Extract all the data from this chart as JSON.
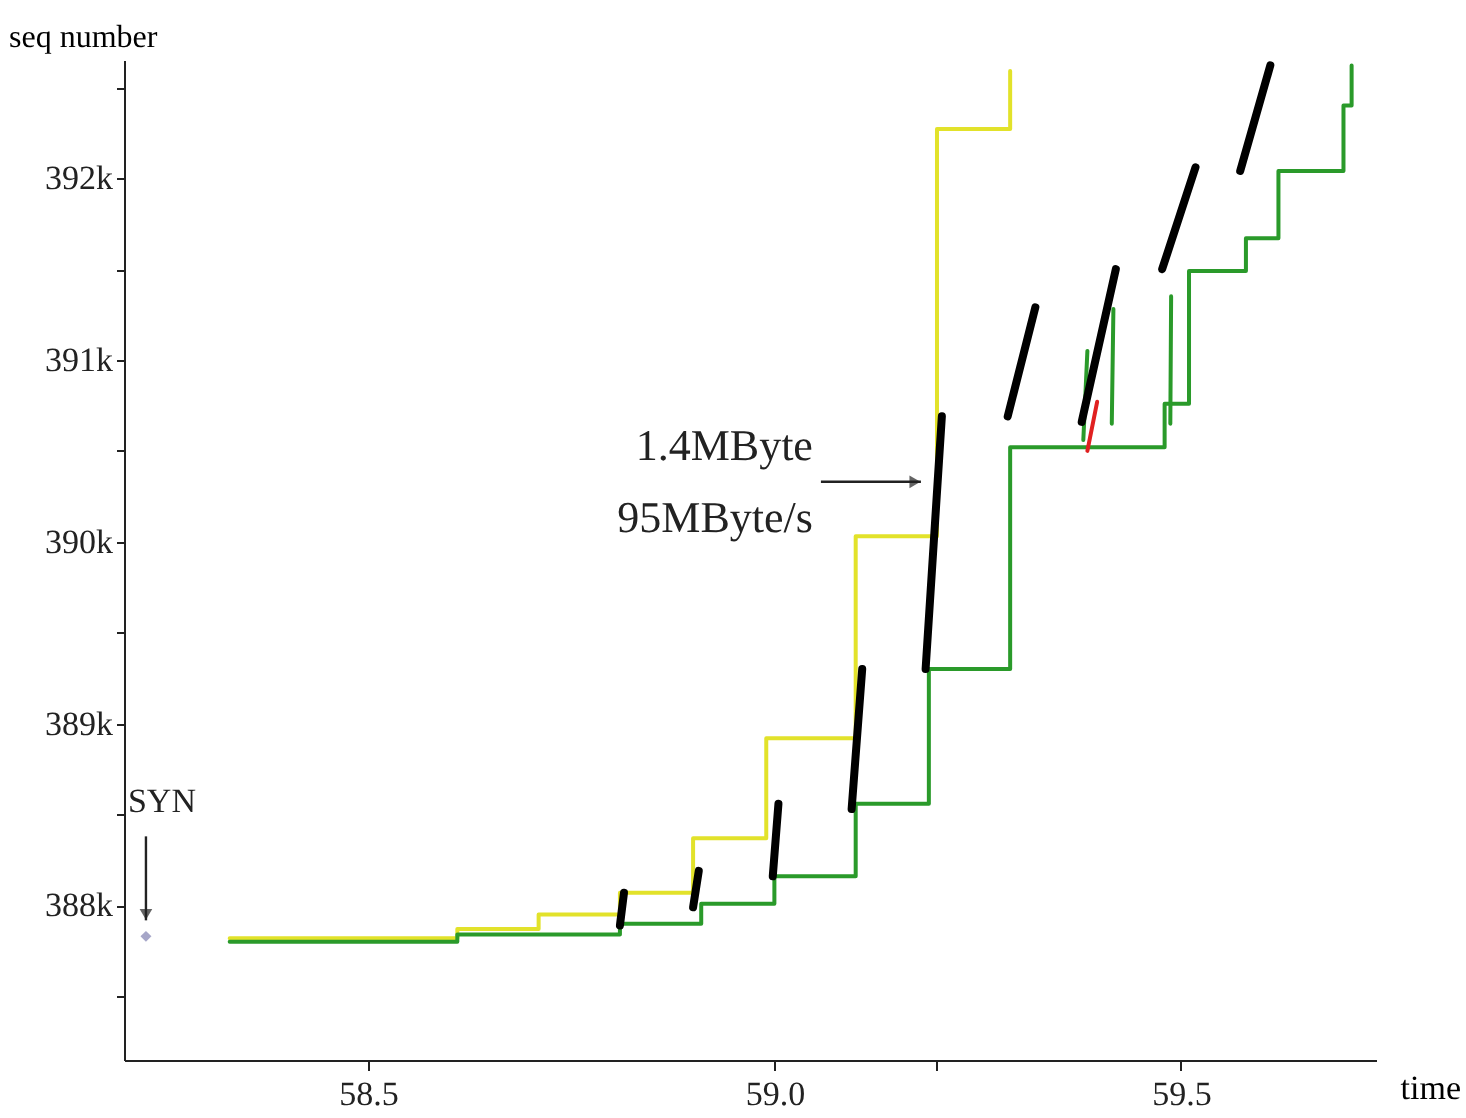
{
  "chart_data": {
    "type": "line",
    "xlabel": "time",
    "ylabel": "seq number",
    "xlim": [
      58.2,
      59.74
    ],
    "ylim": [
      387150,
      392650
    ],
    "xticks": [
      58.5,
      {
        "value": 59,
        "label": "59.0"
      },
      {
        "value": 59.2,
        "label": null
      },
      59.5
    ],
    "yticks": [
      {
        "value": 387500,
        "label": null
      },
      {
        "value": 388000,
        "label": "388k"
      },
      {
        "value": 388500,
        "label": null
      },
      {
        "value": 389000,
        "label": "389k"
      },
      {
        "value": 389500,
        "label": null
      },
      {
        "value": 390000,
        "label": "390k"
      },
      {
        "value": 390500,
        "label": null
      },
      {
        "value": 391000,
        "label": "391k"
      },
      {
        "value": 391500,
        "label": null
      },
      {
        "value": 392000,
        "label": "392k"
      },
      {
        "value": 392500,
        "label": null
      }
    ],
    "grid": false,
    "series": [
      {
        "type": "step",
        "color": "#e2e22a",
        "x": [
          58.33,
          58.61,
          58.71,
          58.81,
          58.9,
          58.99,
          59.1,
          59.2,
          59.29,
          59.29
        ],
        "values": [
          387820,
          387870,
          387950,
          388070,
          388370,
          388920,
          390030,
          392270,
          392270,
          392590
        ]
      },
      {
        "type": "step",
        "color": "#2a9a2a",
        "x": [
          58.33,
          58.61,
          58.81,
          58.91,
          59.0,
          59.1,
          59.19,
          59.29,
          59.48,
          59.51,
          59.58,
          59.62,
          59.7,
          59.71
        ],
        "values": [
          387800,
          387840,
          387900,
          388010,
          388160,
          388560,
          389300,
          390520,
          390760,
          391490,
          391670,
          392040,
          392400,
          392620
        ]
      },
      {
        "type": "line",
        "color": "#2a9a2a",
        "x": [
          59.38,
          59.385
        ],
        "values": [
          390560,
          391050
        ]
      },
      {
        "type": "line",
        "color": "#2a9a2a",
        "x": [
          59.415,
          59.417
        ],
        "values": [
          390650,
          391280
        ]
      },
      {
        "type": "line",
        "color": "#2a9a2a",
        "x": [
          59.487,
          59.488
        ],
        "values": [
          390650,
          391350
        ]
      },
      {
        "color": "#000000",
        "x": [
          58.81,
          58.815
        ],
        "values": [
          387890,
          388070
        ]
      },
      {
        "color": "#000000",
        "x": [
          58.9,
          58.907
        ],
        "values": [
          387990,
          388190
        ]
      },
      {
        "color": "#000000",
        "x": [
          58.998,
          59.005
        ],
        "values": [
          388160,
          388560
        ]
      },
      {
        "color": "#000000",
        "x": [
          59.095,
          59.108
        ],
        "values": [
          388530,
          389300
        ]
      },
      {
        "color": "#000000",
        "x": [
          59.186,
          59.206
        ],
        "values": [
          389300,
          390690
        ]
      },
      {
        "color": "#000000",
        "x": [
          59.287,
          59.321
        ],
        "values": [
          390690,
          391290
        ]
      },
      {
        "color": "#000000",
        "x": [
          59.378,
          59.42
        ],
        "values": [
          390660,
          391500
        ]
      },
      {
        "color": "#000000",
        "x": [
          59.477,
          59.518
        ],
        "values": [
          391500,
          392060
        ]
      },
      {
        "color": "#000000",
        "x": [
          59.573,
          59.61
        ],
        "values": [
          392040,
          392620
        ]
      },
      {
        "type": "line",
        "color": "#e02020",
        "x": [
          59.385,
          59.397
        ],
        "values": [
          390500,
          390770
        ]
      },
      {
        "type": "scatter",
        "color": "#8080b0",
        "marker": "diamond",
        "x": [
          58.227
        ],
        "values": [
          387830
        ]
      }
    ],
    "annotations": [
      {
        "text": "SYN",
        "x": 58.227,
        "y": 387830
      },
      {
        "text": "1.4MByte\n95MByte/s",
        "x": 59.195,
        "y": 390330
      }
    ]
  }
}
